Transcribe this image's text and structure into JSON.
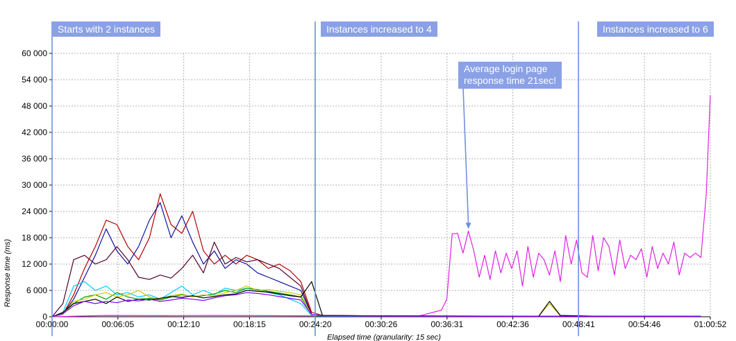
{
  "colors": {
    "grid": "#b0b0b0",
    "marker": "#6f8fe0",
    "annotation_bg": "#8aa1e6",
    "highlight": "#e11ee8"
  },
  "annotations": {
    "start": "Starts with 2 instances",
    "scale4": "Instances increased to 4",
    "scale6": "Instances increased to 6",
    "callout_line1": "Average login page",
    "callout_line2": "response time 21sec!"
  },
  "chart_data": {
    "type": "line",
    "title": "",
    "xlabel": "Elapsed time (granularity: 15 sec)",
    "ylabel": "Response time (ms)",
    "ylim": [
      0,
      60000
    ],
    "xlim_minutes": [
      0,
      60.87
    ],
    "x_ticks": [
      "00:00:00",
      "00:06:05",
      "00:12:10",
      "00:18:15",
      "00:24:20",
      "00:30:26",
      "00:36:31",
      "00:42:36",
      "00:48:41",
      "00:54:46",
      "01:00:52"
    ],
    "y_ticks": [
      "0",
      "6 000",
      "12 000",
      "18 000",
      "24 000",
      "30 000",
      "36 000",
      "42 000",
      "48 000",
      "54 000",
      "60 000"
    ],
    "event_markers_minutes": [
      0,
      24.33,
      48.68
    ],
    "callout_point": {
      "x_minutes": 38.5,
      "y": 20000
    },
    "series": [
      {
        "color": "#e11ee8",
        "x": [
          0,
          5,
          10,
          15,
          20,
          24.3,
          26,
          30,
          34,
          36.0,
          36.5,
          37,
          37.5,
          38,
          38.5,
          39,
          39.5,
          40,
          40.5,
          41,
          41.5,
          42,
          42.5,
          43,
          43.5,
          44,
          44.5,
          45,
          45.5,
          46,
          46.5,
          47,
          47.5,
          48,
          48.5,
          49,
          49.5,
          50,
          50.5,
          51,
          51.5,
          52,
          52.5,
          53,
          53.5,
          54,
          54.5,
          55,
          55.5,
          56,
          56.5,
          57,
          57.5,
          58,
          58.5,
          59,
          59.5,
          60,
          60.5,
          60.87
        ],
        "y": [
          0,
          300,
          250,
          300,
          250,
          200,
          150,
          100,
          200,
          1500,
          4000,
          18900,
          19000,
          14500,
          19500,
          15000,
          9000,
          14000,
          8500,
          15000,
          10000,
          14500,
          11000,
          15000,
          7000,
          16000,
          9000,
          14500,
          13000,
          9500,
          15000,
          8000,
          18500,
          12000,
          17500,
          10000,
          9000,
          18500,
          10500,
          18000,
          16000,
          9500,
          17500,
          11000,
          14000,
          13000,
          15500,
          9000,
          16000,
          11000,
          14500,
          12000,
          17000,
          9500,
          14500,
          13500,
          14500,
          13500,
          28000,
          50500
        ]
      },
      {
        "color": "#b00000",
        "x": [
          0,
          1,
          2,
          3,
          4,
          5,
          6,
          7,
          8,
          9,
          10,
          11,
          12,
          13,
          14,
          15,
          16,
          17,
          18,
          19,
          20,
          21,
          22,
          23,
          24,
          25,
          30,
          40,
          50,
          60
        ],
        "y": [
          0,
          500,
          5000,
          11000,
          16000,
          22000,
          21000,
          16000,
          13000,
          18000,
          28000,
          21000,
          19000,
          24000,
          15000,
          12000,
          14000,
          12000,
          14000,
          13000,
          11000,
          12000,
          10500,
          8000,
          1000,
          300,
          200,
          150,
          150,
          100
        ]
      },
      {
        "color": "#1010a0",
        "x": [
          0,
          1,
          2,
          3,
          4,
          5,
          6,
          7,
          8,
          9,
          10,
          11,
          12,
          13,
          14,
          15,
          16,
          17,
          18,
          19,
          20,
          21,
          22,
          23,
          24,
          25,
          30,
          40,
          50,
          60
        ],
        "y": [
          0,
          600,
          4000,
          9000,
          14000,
          20000,
          15000,
          12000,
          16000,
          22000,
          26000,
          18000,
          23000,
          17000,
          12000,
          15000,
          11000,
          13000,
          12000,
          10000,
          9000,
          8000,
          7000,
          6000,
          500,
          300,
          200,
          150,
          150,
          100
        ]
      },
      {
        "color": "#50002a",
        "x": [
          0,
          1,
          2,
          3,
          4,
          5,
          6,
          7,
          8,
          9,
          10,
          11,
          12,
          13,
          14,
          15,
          16,
          17,
          18,
          19,
          20,
          21,
          22,
          23,
          24,
          25,
          30,
          40,
          50,
          60
        ],
        "y": [
          0,
          3000,
          13000,
          14000,
          12000,
          13000,
          16000,
          13000,
          9000,
          8500,
          9500,
          8800,
          11000,
          14000,
          10000,
          17000,
          12000,
          13500,
          12500,
          13000,
          12000,
          11000,
          9000,
          7000,
          500,
          200,
          150,
          100,
          100,
          100
        ]
      },
      {
        "color": "#00c8ff",
        "x": [
          0,
          1,
          2,
          3,
          4,
          5,
          6,
          7,
          8,
          9,
          10,
          11,
          12,
          13,
          14,
          15,
          16,
          17,
          18,
          19,
          20,
          21,
          22,
          23,
          24,
          25,
          30,
          40,
          50,
          60
        ],
        "y": [
          0,
          1000,
          7000,
          8000,
          6000,
          7000,
          5000,
          5500,
          4500,
          5000,
          4000,
          5500,
          7000,
          5000,
          6000,
          5000,
          6500,
          6000,
          6500,
          6000,
          5500,
          5000,
          4000,
          3000,
          300,
          150,
          100,
          100,
          100,
          100
        ]
      },
      {
        "color": "#00a000",
        "x": [
          0,
          1,
          2,
          3,
          4,
          5,
          6,
          7,
          8,
          9,
          10,
          11,
          12,
          13,
          14,
          15,
          16,
          17,
          18,
          19,
          20,
          21,
          22,
          23,
          24,
          25,
          30,
          40,
          50,
          60
        ],
        "y": [
          0,
          800,
          3000,
          4500,
          5000,
          4000,
          5500,
          4500,
          4000,
          4200,
          3800,
          4500,
          5000,
          4600,
          4800,
          5200,
          6000,
          5500,
          6500,
          6200,
          5800,
          5400,
          5000,
          4500,
          400,
          200,
          150,
          100,
          100,
          100
        ]
      },
      {
        "color": "#c8c800",
        "x": [
          0,
          1,
          2,
          3,
          4,
          5,
          6,
          7,
          8,
          9,
          10,
          11,
          12,
          13,
          14,
          15,
          16,
          17,
          18,
          19,
          20,
          21,
          22,
          23,
          24,
          25,
          30,
          40,
          45,
          46,
          47,
          50,
          60
        ],
        "y": [
          0,
          500,
          3500,
          4000,
          5000,
          5500,
          4500,
          5000,
          6000,
          4500,
          4000,
          4800,
          5200,
          4500,
          5000,
          4700,
          5500,
          6000,
          7000,
          6000,
          6200,
          5800,
          5500,
          5000,
          400,
          200,
          150,
          100,
          100,
          3000,
          200,
          100,
          100
        ]
      },
      {
        "color": "#000000",
        "x": [
          0,
          1,
          2,
          3,
          4,
          5,
          6,
          7,
          8,
          9,
          10,
          11,
          12,
          13,
          14,
          15,
          16,
          17,
          18,
          19,
          20,
          21,
          22,
          23,
          24,
          25,
          30,
          40,
          45,
          46,
          47,
          50,
          60
        ],
        "y": [
          0,
          1000,
          3000,
          3500,
          4000,
          3000,
          4500,
          3500,
          4000,
          3800,
          4200,
          4600,
          4400,
          4800,
          4300,
          4600,
          5000,
          5200,
          6000,
          5800,
          5600,
          5200,
          4800,
          4500,
          8000,
          300,
          200,
          150,
          100,
          3500,
          300,
          150,
          100
        ]
      },
      {
        "color": "#7f00ff",
        "x": [
          0,
          1,
          2,
          3,
          4,
          5,
          6,
          7,
          8,
          9,
          10,
          11,
          12,
          13,
          14,
          15,
          16,
          17,
          18,
          19,
          20,
          21,
          22,
          23,
          24,
          25,
          30,
          40,
          50,
          60
        ],
        "y": [
          0,
          700,
          2500,
          3500,
          3000,
          3500,
          3200,
          3800,
          3600,
          4000,
          3500,
          3800,
          4200,
          4000,
          3700,
          4300,
          4800,
          5000,
          5500,
          5300,
          5000,
          4600,
          4200,
          3800,
          500,
          200,
          150,
          100,
          100,
          100
        ]
      }
    ]
  }
}
